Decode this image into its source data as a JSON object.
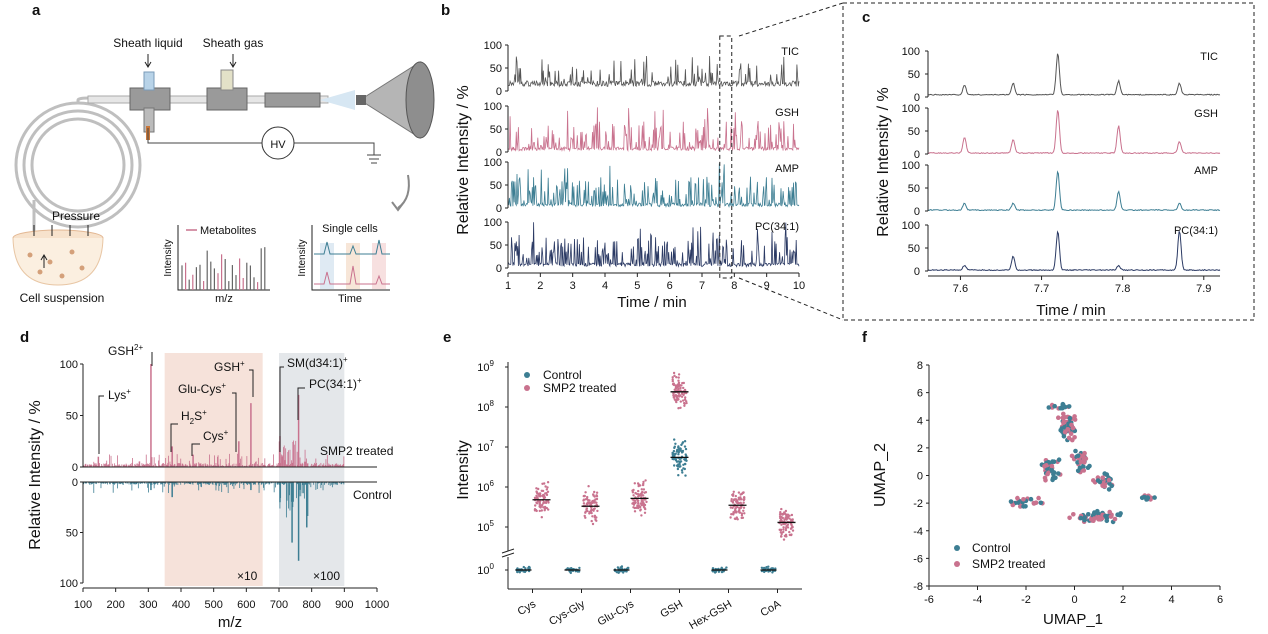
{
  "colors": {
    "control": "#3d7e93",
    "treated": "#c9728e",
    "tic": "#555555",
    "gsh": "#c9728e",
    "amp": "#3d7e93",
    "pc": "#2b3a64",
    "shade_red": "#f6e2da",
    "shade_gray": "#e4e7ea",
    "axis": "#222222"
  },
  "panel_labels": {
    "a": "a",
    "b": "b",
    "c": "c",
    "d": "d",
    "e": "e",
    "f": "f"
  },
  "panel_a": {
    "sheath_liquid": "Sheath liquid",
    "sheath_gas": "Sheath gas",
    "hv": "HV",
    "pressure": "Pressure",
    "cell_suspension": "Cell suspension",
    "inset1": {
      "legend": "Metabolites",
      "ylabel": "Intensity",
      "xlabel": "m/z"
    },
    "inset2": {
      "title": "Single cells",
      "ylabel": "Intensity",
      "xlabel": "Time"
    }
  },
  "chart_data": [
    {
      "panel": "b",
      "type": "line",
      "xlabel": "Time / min",
      "ylabel": "Relative Intensity / %",
      "xlim": [
        1,
        10
      ],
      "ylim": [
        0,
        100
      ],
      "xticks": [
        "1",
        "2",
        "3",
        "4",
        "5",
        "6",
        "7",
        "8",
        "9",
        "10"
      ],
      "yticks": [
        "0",
        "50",
        "100"
      ],
      "series": [
        {
          "name": "TIC"
        },
        {
          "name": "GSH"
        },
        {
          "name": "AMP"
        },
        {
          "name": "PC(34:1)"
        }
      ],
      "zoom_window": [
        7.55,
        7.92
      ]
    },
    {
      "panel": "c",
      "type": "line",
      "xlabel": "Time / min",
      "ylabel": "Relative Intensity / %",
      "xlim": [
        7.56,
        7.92
      ],
      "ylim": [
        0,
        100
      ],
      "xticks": [
        "7.6",
        "7.7",
        "7.8",
        "7.9"
      ],
      "yticks": [
        "0",
        "50",
        "100"
      ],
      "peaks_x": [
        7.605,
        7.665,
        7.72,
        7.795,
        7.87
      ],
      "series": [
        {
          "name": "TIC",
          "values": [
            20,
            25,
            90,
            30,
            25
          ]
        },
        {
          "name": "GSH",
          "values": [
            35,
            30,
            95,
            60,
            25
          ]
        },
        {
          "name": "AMP",
          "values": [
            15,
            15,
            85,
            40,
            15
          ]
        },
        {
          "name": "PC(34:1)",
          "values": [
            10,
            30,
            85,
            10,
            85
          ]
        }
      ]
    },
    {
      "panel": "d",
      "type": "bar",
      "xlabel": "m/z",
      "ylabel": "Relative Intensity / %",
      "xlim": [
        100,
        1000
      ],
      "ylim": [
        0,
        100
      ],
      "xticks": [
        "100",
        "200",
        "300",
        "400",
        "500",
        "600",
        "700",
        "800",
        "900",
        "1000"
      ],
      "yticks_top": [
        "0",
        "50",
        "100"
      ],
      "yticks_bottom": [
        "0",
        "50",
        "100"
      ],
      "shaded": [
        {
          "range": [
            350,
            650
          ],
          "label": "×10"
        },
        {
          "range": [
            700,
            900
          ],
          "label": "×100"
        }
      ],
      "series": [
        {
          "name": "SMP2 treated",
          "peaks": [
            {
              "mz": 147,
              "val": 10,
              "label": "Lys+"
            },
            {
              "mz": 308,
              "val": 100,
              "label": "GSH2+"
            },
            {
              "mz": 373,
              "val": 20,
              "label": "H2S+"
            },
            {
              "mz": 437,
              "val": 12,
              "label": "Cys+"
            },
            {
              "mz": 577,
              "val": 25,
              "label": "Glu-Cys+"
            },
            {
              "mz": 614,
              "val": 62,
              "label": "GSH+"
            },
            {
              "mz": 703,
              "val": 30,
              "label": "SM(d34:1)+"
            },
            {
              "mz": 760,
              "val": 70,
              "label": "PC(34:1)+"
            }
          ]
        },
        {
          "name": "Control",
          "peaks": [
            {
              "mz": 308,
              "val": 8
            },
            {
              "mz": 373,
              "val": 15
            },
            {
              "mz": 614,
              "val": 8
            },
            {
              "mz": 703,
              "val": 20
            },
            {
              "mz": 740,
              "val": 60
            },
            {
              "mz": 760,
              "val": 78
            },
            {
              "mz": 785,
              "val": 45
            }
          ]
        }
      ],
      "labels": {
        "treated": "SMP2 treated",
        "control": "Control"
      },
      "peak_labels": {
        "lys": "Lys",
        "gsh2": "GSH",
        "gsh2_sup": "2+",
        "h2s": "H",
        "h2s_sub": "2",
        "h2s_tail": "S",
        "cys": "Cys",
        "glucys": "Glu-Cys",
        "gsh": "GSH",
        "sm": "SM(d34:1)",
        "pc": "PC(34:1)",
        "plus": "+"
      }
    },
    {
      "panel": "e",
      "type": "scatter",
      "ylabel": "Intensity",
      "yscale": "log",
      "yticks": [
        "10",
        "10",
        "10",
        "10",
        "10",
        "10"
      ],
      "ytick_exp": [
        "0",
        "5",
        "6",
        "7",
        "8",
        "9"
      ],
      "categories": [
        "Cys",
        "Cys-Gly",
        "Glu-Cys",
        "GSH",
        "Hex-GSH",
        "CoA"
      ],
      "series": [
        {
          "name": "Control",
          "medians": [
            1,
            1,
            1,
            5500000,
            1,
            1
          ]
        },
        {
          "name": "SMP2 treated",
          "medians": [
            480000,
            330000,
            520000,
            240000000,
            350000,
            130000
          ]
        }
      ],
      "legend": [
        "Control",
        "SMP2 treated"
      ]
    },
    {
      "panel": "f",
      "type": "scatter",
      "xlabel": "UMAP_1",
      "ylabel": "UMAP_2",
      "xlim": [
        -6,
        6
      ],
      "ylim": [
        -8,
        8
      ],
      "xticks": [
        "-6",
        "-4",
        "-2",
        "0",
        "2",
        "4",
        "6"
      ],
      "yticks": [
        "8",
        "6",
        "4",
        "2",
        "0",
        "-2",
        "-4",
        "-6",
        "-8"
      ],
      "series": [
        {
          "name": "Control"
        },
        {
          "name": "SMP2 treated"
        }
      ],
      "legend": [
        "Control",
        "SMP2 treated"
      ]
    }
  ]
}
